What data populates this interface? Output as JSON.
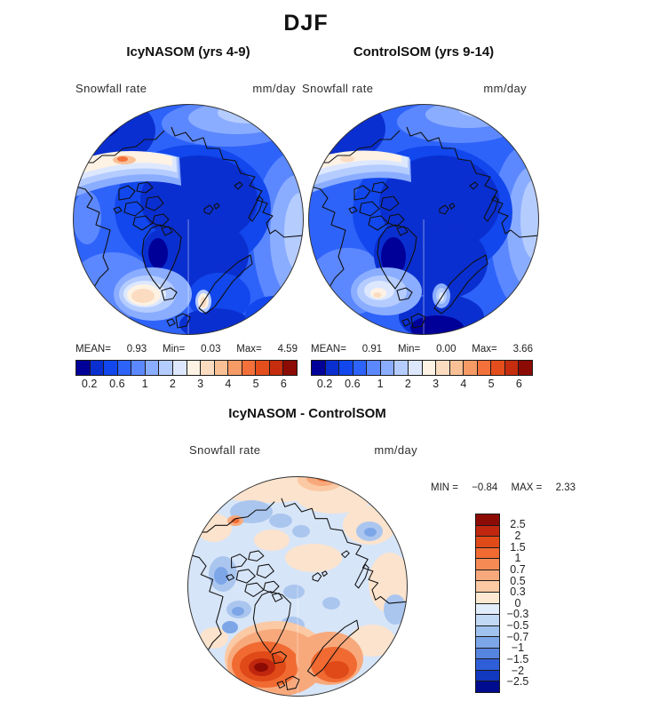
{
  "title": "DJF",
  "panels": [
    {
      "title": "IcyNASOM (yrs 4-9)",
      "var_label": "Snowfall rate",
      "unit": "mm/day",
      "stats": {
        "mean_label": "MEAN=",
        "mean": "0.93",
        "min_label": "Min=",
        "min": "0.03",
        "max_label": "Max=",
        "max": "4.59"
      },
      "colorbar_ticks": [
        "0.2",
        "0.6",
        "1",
        "2",
        "3",
        "4",
        "5",
        "6"
      ]
    },
    {
      "title": "ControlSOM (yrs 9-14)",
      "var_label": "Snowfall rate",
      "unit": "mm/day",
      "stats": {
        "mean_label": "MEAN=",
        "mean": "0.91",
        "min_label": "Min=",
        "min": "0.00",
        "max_label": "Max=",
        "max": "3.66"
      },
      "colorbar_ticks": [
        "0.2",
        "0.6",
        "1",
        "2",
        "3",
        "4",
        "5",
        "6"
      ]
    }
  ],
  "diff": {
    "title": "IcyNASOM - ControlSOM",
    "var_label": "Snowfall rate",
    "unit": "mm/day",
    "stats": {
      "min_label": "MIN =",
      "min": "−0.84",
      "max_label": "MAX =",
      "max": "2.33"
    },
    "colorbar_ticks": [
      "2.5",
      "2",
      "1.5",
      "1",
      "0.7",
      "0.5",
      "0.3",
      "0",
      "−0.3",
      "−0.5",
      "−0.7",
      "−1",
      "−1.5",
      "−2",
      "−2.5"
    ]
  },
  "palettes": {
    "snowfall": [
      "#000099",
      "#0a2fd0",
      "#1147ec",
      "#2e63fa",
      "#5c88ff",
      "#8badff",
      "#b5ccff",
      "#dde8ff",
      "#fdf2e4",
      "#fbdcc1",
      "#f9c096",
      "#f69a66",
      "#f3703a",
      "#e44d1c",
      "#c52d0e",
      "#8c0b04"
    ],
    "difference": [
      "#8c0b04",
      "#c0270e",
      "#e04a18",
      "#f06a32",
      "#f58a55",
      "#f8a97c",
      "#fbc9a4",
      "#fde9d2",
      "#e2edfb",
      "#c2d9f5",
      "#a0c2ef",
      "#7da6e8",
      "#5685e0",
      "#2e5ed8",
      "#1238c0",
      "#000c90"
    ]
  },
  "chart_data": [
    {
      "type": "heatmap",
      "title": "IcyNASOM (yrs 4-9)",
      "season": "DJF",
      "variable": "Snowfall rate",
      "units": "mm/day",
      "projection": "north-polar-stereographic",
      "stats": {
        "mean": 0.93,
        "min": 0.03,
        "max": 4.59
      },
      "contour_levels": [
        0.2,
        0.4,
        0.6,
        0.8,
        1,
        1.5,
        2,
        2.5,
        3,
        3.5,
        4,
        4.5,
        5,
        5.5,
        6
      ],
      "labeled_levels": [
        0.2,
        0.6,
        1,
        2,
        3,
        4,
        5,
        6
      ],
      "legend_position": "bottom"
    },
    {
      "type": "heatmap",
      "title": "ControlSOM (yrs 9-14)",
      "season": "DJF",
      "variable": "Snowfall rate",
      "units": "mm/day",
      "projection": "north-polar-stereographic",
      "stats": {
        "mean": 0.91,
        "min": 0.0,
        "max": 3.66
      },
      "contour_levels": [
        0.2,
        0.4,
        0.6,
        0.8,
        1,
        1.5,
        2,
        2.5,
        3,
        3.5,
        4,
        4.5,
        5,
        5.5,
        6
      ],
      "labeled_levels": [
        0.2,
        0.6,
        1,
        2,
        3,
        4,
        5,
        6
      ],
      "legend_position": "bottom"
    },
    {
      "type": "heatmap",
      "title": "IcyNASOM - ControlSOM",
      "season": "DJF",
      "variable": "Snowfall rate difference",
      "units": "mm/day",
      "projection": "north-polar-stereographic",
      "stats": {
        "min": -0.84,
        "max": 2.33
      },
      "contour_levels": [
        -2.5,
        -2,
        -1.5,
        -1,
        -0.7,
        -0.5,
        -0.3,
        0,
        0.3,
        0.5,
        0.7,
        1,
        1.5,
        2,
        2.5
      ],
      "legend_position": "right"
    }
  ]
}
